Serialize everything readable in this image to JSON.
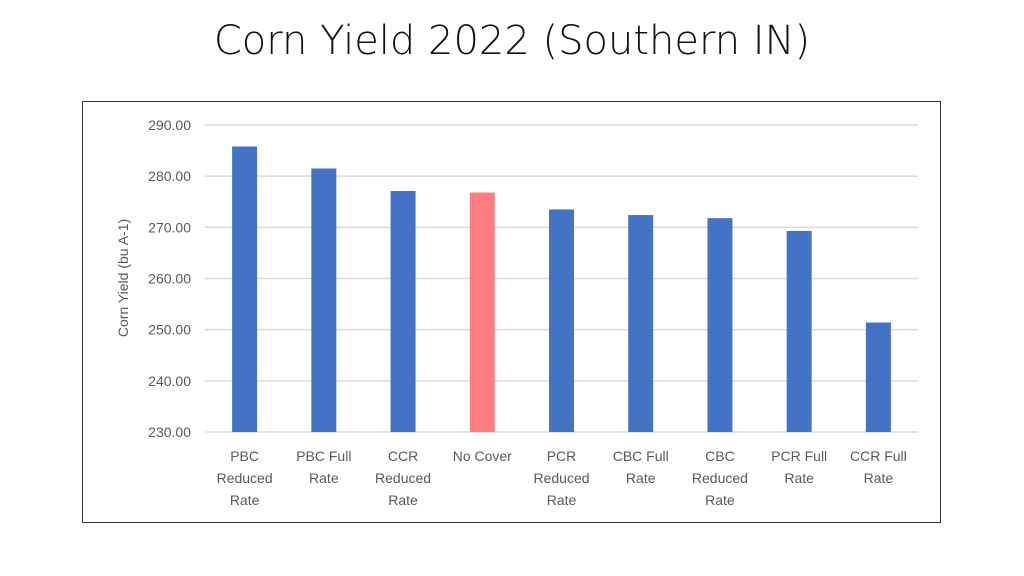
{
  "chart_data": {
    "type": "bar",
    "title": "Corn Yield 2022 (Southern IN)",
    "xlabel": "",
    "ylabel": "Corn Yield (bu A-1)",
    "ylabel_main": "Corn Yield (bu A",
    "ylabel_sup": "-1",
    "ylabel_end": ")",
    "ylim": [
      230,
      290
    ],
    "yticks": [
      "230.00",
      "240.00",
      "250.00",
      "260.00",
      "270.00",
      "280.00",
      "290.00"
    ],
    "grid": true,
    "categories": [
      [
        "PBC",
        "Reduced",
        "Rate"
      ],
      [
        "PBC Full",
        "Rate"
      ],
      [
        "CCR",
        "Reduced",
        "Rate"
      ],
      [
        "No Cover"
      ],
      [
        "PCR",
        "Reduced",
        "Rate"
      ],
      [
        "CBC Full",
        "Rate"
      ],
      [
        "CBC",
        "Reduced",
        "Rate"
      ],
      [
        "PCR Full",
        "Rate"
      ],
      [
        "CCR Full",
        "Rate"
      ]
    ],
    "values": [
      285.8,
      281.5,
      277.1,
      276.8,
      273.5,
      272.4,
      271.8,
      269.3,
      251.4
    ],
    "colors": [
      "#4472C4",
      "#4472C4",
      "#4472C4",
      "#FF7C80",
      "#4472C4",
      "#4472C4",
      "#4472C4",
      "#4472C4",
      "#4472C4"
    ]
  }
}
